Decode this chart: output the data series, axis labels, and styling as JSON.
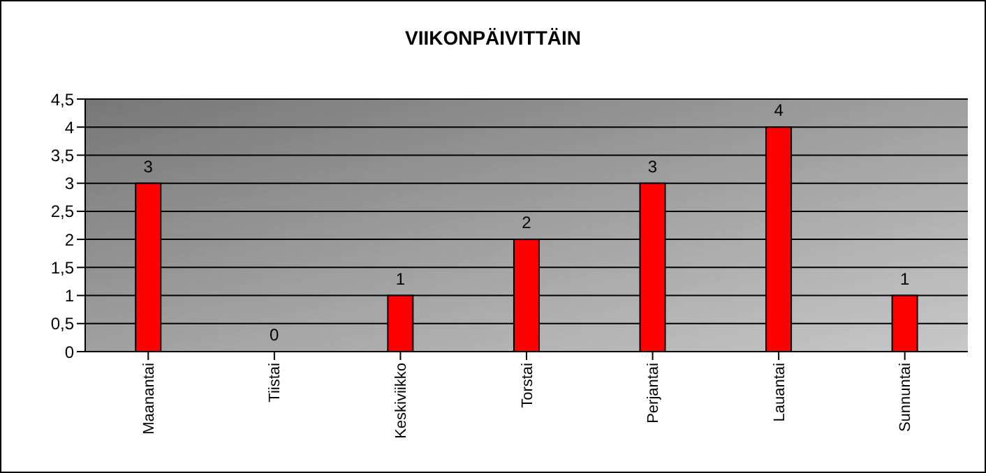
{
  "chart_data": {
    "type": "bar",
    "title": "VIIKONPÄIVITTÄIN",
    "categories": [
      "Maanantai",
      "Tiistai",
      "Keskiviikko",
      "Torstai",
      "Perjantai",
      "Lauantai",
      "Sunnuntai"
    ],
    "values": [
      3,
      0,
      1,
      2,
      3,
      4,
      1
    ],
    "color": "#ff0000",
    "ylim": [
      0,
      4.5
    ],
    "yticks": [
      0,
      {
        "value": 0.5,
        "label": "0,5"
      },
      1,
      {
        "value": 1.5,
        "label": "1,5"
      },
      2,
      {
        "value": 2.5,
        "label": "2,5"
      },
      3,
      {
        "value": 3.5,
        "label": "3,5"
      },
      4,
      {
        "value": 4.5,
        "label": "4,5"
      }
    ],
    "grid": "y",
    "data_labels": true
  }
}
